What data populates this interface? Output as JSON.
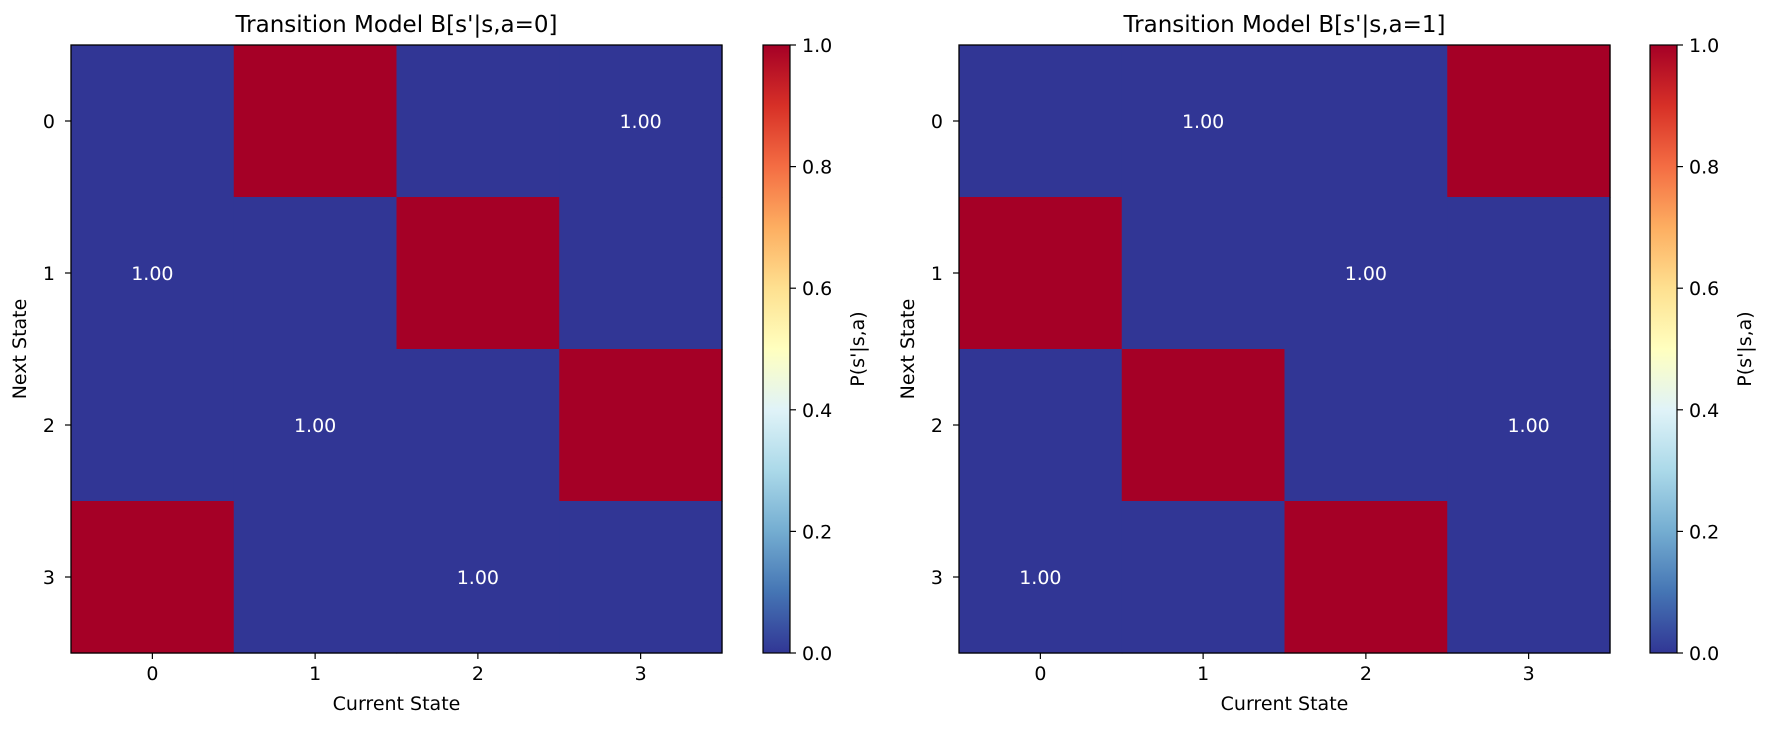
{
  "colorscale": {
    "low": "#313695",
    "high": "#a50026",
    "stops": [
      "#313695",
      "#4575b4",
      "#74add1",
      "#abd9e9",
      "#e0f3f8",
      "#ffffbf",
      "#fee090",
      "#fdae61",
      "#f46d43",
      "#d73027",
      "#a50026"
    ]
  },
  "chart_data": [
    {
      "type": "heatmap",
      "title": "Transition Model B[s'|s,a=0]",
      "xlabel": "Current State",
      "ylabel": "Next State",
      "x_ticks": [
        "0",
        "1",
        "2",
        "3"
      ],
      "y_ticks": [
        "0",
        "1",
        "2",
        "3"
      ],
      "colorbar": {
        "label": "P(s'|s,a)",
        "range": [
          0,
          1
        ],
        "ticks": [
          "0.0",
          "0.2",
          "0.4",
          "0.6",
          "0.8",
          "1.0"
        ]
      },
      "matrix": [
        [
          0,
          1,
          0,
          0
        ],
        [
          0,
          0,
          1,
          0
        ],
        [
          0,
          0,
          0,
          1
        ],
        [
          1,
          0,
          0,
          0
        ]
      ],
      "annotations": [
        {
          "row": 0,
          "col": 3,
          "text": "1.00"
        },
        {
          "row": 1,
          "col": 0,
          "text": "1.00"
        },
        {
          "row": 2,
          "col": 1,
          "text": "1.00"
        },
        {
          "row": 3,
          "col": 2,
          "text": "1.00"
        }
      ]
    },
    {
      "type": "heatmap",
      "title": "Transition Model B[s'|s,a=1]",
      "xlabel": "Current State",
      "ylabel": "Next State",
      "x_ticks": [
        "0",
        "1",
        "2",
        "3"
      ],
      "y_ticks": [
        "0",
        "1",
        "2",
        "3"
      ],
      "colorbar": {
        "label": "P(s'|s,a)",
        "range": [
          0,
          1
        ],
        "ticks": [
          "0.0",
          "0.2",
          "0.4",
          "0.6",
          "0.8",
          "1.0"
        ]
      },
      "matrix": [
        [
          0,
          0,
          0,
          1
        ],
        [
          1,
          0,
          0,
          0
        ],
        [
          0,
          1,
          0,
          0
        ],
        [
          0,
          0,
          1,
          0
        ]
      ],
      "annotations": [
        {
          "row": 0,
          "col": 1,
          "text": "1.00"
        },
        {
          "row": 1,
          "col": 2,
          "text": "1.00"
        },
        {
          "row": 2,
          "col": 3,
          "text": "1.00"
        },
        {
          "row": 3,
          "col": 0,
          "text": "1.00"
        }
      ]
    }
  ]
}
